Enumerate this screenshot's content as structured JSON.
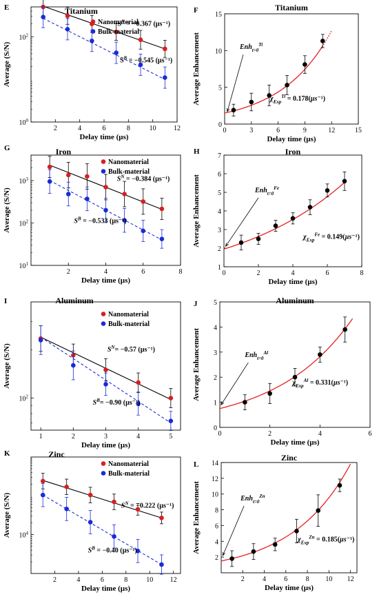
{
  "chart_data": [
    {
      "id": "E",
      "panel_label": "E",
      "type": "scatter",
      "title": "Titanium",
      "xlabel": "Delay time (µs)",
      "ylabel": "Average (S/N)",
      "xlim": [
        0,
        12
      ],
      "ylim_log10": [
        0,
        2.7
      ],
      "y_scale": "log",
      "grid": false,
      "x_ticks": [
        2,
        4,
        6,
        8,
        10,
        12
      ],
      "y_ticks": [
        {
          "v": 0,
          "label": "10",
          "sup": "0"
        },
        {
          "v": 2,
          "label": "10",
          "sup": "2"
        }
      ],
      "legend_position": "top-left",
      "series": [
        {
          "name": "Nanomaterial",
          "color": "#d62020",
          "line": "solid",
          "line_color": "#000000",
          "x": [
            1,
            3,
            5,
            7,
            9,
            11
          ],
          "y": [
            500,
            310,
            200,
            130,
            85,
            52
          ],
          "yerr": [
            0.22,
            0.2,
            0.2,
            0.2,
            0.22,
            0.2
          ],
          "fit": [
            [
              1,
              520
            ],
            [
              11,
              52
            ]
          ]
        },
        {
          "name": "Bulk-material",
          "color": "#1a2bd6",
          "line": "dashed",
          "line_color": "#1a2bd6",
          "x": [
            1,
            3,
            5,
            7,
            9,
            11
          ],
          "y": [
            290,
            150,
            80,
            42,
            22,
            11
          ],
          "yerr": [
            0.25,
            0.25,
            0.25,
            0.25,
            0.25,
            0.25
          ],
          "fit": [
            [
              1,
              270
            ],
            [
              11,
              10
            ]
          ]
        }
      ],
      "annotations": [
        {
          "x": 7.1,
          "y": 180,
          "parts": [
            [
              "S",
              ""
            ],
            [
              "N",
              "sup"
            ],
            [
              " = −0.367 (µs⁻¹)",
              ""
            ]
          ]
        },
        {
          "x": 7.3,
          "y": 25,
          "parts": [
            [
              "S",
              ""
            ],
            [
              "B",
              "sup"
            ],
            [
              " = −0.545 (µs⁻¹)",
              ""
            ]
          ]
        }
      ]
    },
    {
      "id": "F",
      "panel_label": "F",
      "type": "scatter",
      "title": "Titanium",
      "xlabel": "Delay time (µs)",
      "ylabel": "Average Enhancement",
      "xlim": [
        0,
        15
      ],
      "ylim": [
        0,
        15
      ],
      "grid": false,
      "x_ticks": [
        0,
        3,
        6,
        9,
        12,
        15
      ],
      "y_ticks": [
        0,
        5,
        10,
        15
      ],
      "series": [
        {
          "color": "#000000",
          "x": [
            1,
            3,
            5,
            7,
            9,
            11
          ],
          "y": [
            1.9,
            3.0,
            3.9,
            5.3,
            8.1,
            11.3
          ],
          "yerr": [
            0.8,
            1.2,
            1.4,
            1.3,
            1.2,
            0.9
          ]
        }
      ],
      "fit_curve": {
        "a": 1.5,
        "b": 0.178,
        "x_end": 12,
        "color": "#e32020",
        "dotted_after": 11
      },
      "annotations": [
        {
          "x": 5.1,
          "y": 3.2,
          "parts": [
            [
              "χ",
              "it"
            ],
            [
              "Exp",
              "sub"
            ],
            [
              "Ti",
              "sup"
            ],
            [
              " = 0.178(",
              ""
            ],
            [
              "µs",
              "it"
            ],
            [
              "⁻¹",
              ""
            ],
            [
              ")",
              ""
            ]
          ]
        }
      ],
      "callout": {
        "x": 1.7,
        "y": 10.2,
        "parts": [
          [
            "Enh",
            "it"
          ],
          [
            "t=0",
            "sub"
          ],
          [
            "Ti",
            "sup"
          ]
        ],
        "arrow_to": [
          0.3,
          1.7
        ]
      }
    },
    {
      "id": "G",
      "panel_label": "G",
      "type": "scatter",
      "title": "Iron",
      "xlabel": "Delay time (µs)",
      "ylabel": "Average (S/N)",
      "xlim": [
        0,
        8
      ],
      "ylim_log10": [
        1,
        3.6
      ],
      "y_scale": "log",
      "grid": false,
      "x_ticks": [
        2,
        4,
        6,
        8
      ],
      "y_ticks": [
        {
          "v": 1,
          "label": "10",
          "sup": "1"
        },
        {
          "v": 2,
          "label": "10",
          "sup": "2"
        },
        {
          "v": 3,
          "label": "10",
          "sup": "3"
        }
      ],
      "legend_position": "top-right",
      "series": [
        {
          "name": "Nanomaterial",
          "color": "#d62020",
          "line": "solid",
          "line_color": "#000000",
          "x": [
            1,
            2,
            3,
            4,
            5,
            6,
            7
          ],
          "y": [
            2100,
            1350,
            1250,
            700,
            480,
            320,
            215
          ],
          "yerr": [
            0.25,
            0.3,
            0.3,
            0.3,
            0.3,
            0.3,
            0.25
          ],
          "fit": [
            [
              1,
              2300
            ],
            [
              7,
              210
            ]
          ]
        },
        {
          "name": "Bulk-material",
          "color": "#1a2bd6",
          "line": "dashed",
          "line_color": "#1a2bd6",
          "x": [
            1,
            2,
            3,
            4,
            5,
            6,
            7
          ],
          "y": [
            950,
            480,
            370,
            200,
            115,
            65,
            42
          ],
          "yerr": [
            0.28,
            0.28,
            0.28,
            0.28,
            0.28,
            0.25,
            0.22
          ],
          "fit": [
            [
              1,
              1000
            ],
            [
              7,
              40
            ]
          ]
        }
      ],
      "annotations": [
        {
          "x": 4.6,
          "y": 980,
          "parts": [
            [
              "S",
              "it"
            ],
            [
              "N",
              "sup"
            ],
            [
              " = −0.384 (µs⁻¹)",
              ""
            ]
          ]
        },
        {
          "x": 2.3,
          "y": 100,
          "parts": [
            [
              "S",
              "it"
            ],
            [
              "B",
              "sup"
            ],
            [
              " = −0.533 (µs⁻¹)",
              ""
            ]
          ]
        }
      ]
    },
    {
      "id": "H",
      "panel_label": "H",
      "type": "scatter",
      "title": "Iron",
      "xlabel": "Delay time (µs)",
      "ylabel": "Average Enhancement",
      "xlim": [
        0,
        8
      ],
      "ylim": [
        1,
        7
      ],
      "grid": false,
      "x_ticks": [
        0,
        2,
        4,
        6,
        8
      ],
      "y_ticks": [
        1,
        2,
        3,
        4,
        5,
        6,
        7
      ],
      "series": [
        {
          "color": "#000000",
          "x": [
            1,
            2,
            3,
            4,
            5,
            6,
            7
          ],
          "y": [
            2.3,
            2.5,
            3.2,
            3.6,
            4.2,
            5.1,
            5.6
          ],
          "yerr": [
            0.4,
            0.3,
            0.3,
            0.3,
            0.4,
            0.35,
            0.5
          ]
        }
      ],
      "fit_curve": {
        "a": 1.95,
        "b": 0.149,
        "x_end": 7.1,
        "color": "#e32020"
      },
      "annotations": [
        {
          "x": 4.6,
          "y": 2.5,
          "parts": [
            [
              "χ",
              "it"
            ],
            [
              "Exp",
              "sub"
            ],
            [
              "Fe",
              "sup"
            ],
            [
              " = 0.149(",
              ""
            ],
            [
              "µs",
              "it"
            ],
            [
              "⁻¹",
              ""
            ],
            [
              ")",
              ""
            ]
          ]
        }
      ],
      "callout": {
        "x": 1.8,
        "y": 5.0,
        "parts": [
          [
            "Enh",
            "it"
          ],
          [
            "t=0",
            "sub"
          ],
          [
            "Fe",
            "sup"
          ]
        ],
        "arrow_to": [
          0.1,
          2.1
        ]
      }
    },
    {
      "id": "I",
      "panel_label": "I",
      "type": "scatter",
      "title": "Aluminum",
      "xlabel": "Delay time (µs)",
      "ylabel": "Average (S/N)",
      "xlim": [
        0.7,
        5.3
      ],
      "ylim_log10": [
        1.8,
        2.6
      ],
      "y_scale": "log",
      "grid": false,
      "x_ticks": [
        1,
        2,
        3,
        4,
        5
      ],
      "y_ticks": [
        {
          "v": 2,
          "label": "10",
          "sup": "2"
        }
      ],
      "legend_position": "top-right",
      "series": [
        {
          "name": "Nanomaterial",
          "color": "#d62020",
          "line": "solid",
          "line_color": "#000000",
          "x": [
            1,
            2,
            3,
            4,
            5
          ],
          "y": [
            235,
            185,
            150,
            125,
            100
          ],
          "yerr": [
            0.08,
            0.07,
            0.07,
            0.06,
            0.06
          ],
          "fit": [
            [
              1,
              240
            ],
            [
              5,
              98
            ]
          ]
        },
        {
          "name": "Bulk-material",
          "color": "#1a2bd6",
          "line": "dashed",
          "line_color": "#1a2bd6",
          "x": [
            1,
            2,
            3,
            4,
            5
          ],
          "y": [
            230,
            160,
            122,
            92,
            72
          ],
          "yerr": [
            0.09,
            0.09,
            0.07,
            0.07,
            0.06
          ],
          "fit": [
            [
              1,
              240
            ],
            [
              5,
              70
            ]
          ]
        }
      ],
      "annotations": [
        {
          "x": 3.05,
          "y": 195,
          "parts": [
            [
              "S",
              "it"
            ],
            [
              "N",
              "sup"
            ],
            [
              "= −0.57 (µs⁻¹)",
              ""
            ]
          ]
        },
        {
          "x": 2.6,
          "y": 91,
          "parts": [
            [
              "S",
              "it"
            ],
            [
              "B",
              "sup"
            ],
            [
              "= −0.90 (µs⁻¹)",
              ""
            ]
          ]
        }
      ]
    },
    {
      "id": "J",
      "panel_label": "J",
      "type": "scatter",
      "title": "Aluminum",
      "xlabel": "Delay time (µs)",
      "ylabel": "Average Enhancement",
      "xlim": [
        0,
        6
      ],
      "ylim": [
        0,
        5
      ],
      "grid": false,
      "x_ticks": [
        0,
        2,
        4,
        6
      ],
      "y_ticks": [
        0,
        1,
        2,
        3,
        4,
        5
      ],
      "series": [
        {
          "color": "#000000",
          "x": [
            1,
            2,
            3,
            4,
            5
          ],
          "y": [
            1.0,
            1.35,
            2.0,
            2.9,
            3.9
          ],
          "yerr": [
            0.3,
            0.4,
            0.35,
            0.3,
            0.5
          ]
        }
      ],
      "fit_curve": {
        "a": 0.75,
        "b": 0.331,
        "x_end": 5.3,
        "color": "#e32020"
      },
      "annotations": [
        {
          "x": 2.9,
          "y": 1.7,
          "parts": [
            [
              "χ",
              "it"
            ],
            [
              "Exp",
              "sub"
            ],
            [
              "Al",
              "sup"
            ],
            [
              " = 0.331(",
              ""
            ],
            [
              "µs",
              "it"
            ],
            [
              "⁻¹",
              ""
            ],
            [
              ")",
              ""
            ]
          ]
        }
      ],
      "callout": {
        "x": 1.0,
        "y": 2.8,
        "parts": [
          [
            "Enh",
            "it"
          ],
          [
            "t=0",
            "sub"
          ],
          [
            "Al",
            "sup"
          ]
        ],
        "arrow_to": [
          0.05,
          0.9
        ]
      }
    },
    {
      "id": "K",
      "panel_label": "K",
      "type": "scatter",
      "title": "Zinc",
      "xlabel": "Delay time (µs)",
      "ylabel": "Average (S/N)",
      "xlim": [
        0,
        12.6
      ],
      "ylim_log10": [
        3.0,
        6.0
      ],
      "y_scale": "log",
      "grid": false,
      "x_ticks": [
        2,
        4,
        6,
        8,
        10,
        12
      ],
      "y_ticks": [
        {
          "v": 4,
          "label": "10",
          "sup": "4"
        }
      ],
      "legend_position": "top-right",
      "series": [
        {
          "name": "Nanomaterial",
          "color": "#d62020",
          "line": "solid",
          "line_color": "#000000",
          "x": [
            1,
            3,
            5,
            7,
            9,
            11
          ],
          "y": [
            240000,
            170000,
            105000,
            70000,
            45000,
            27000
          ],
          "yerr": [
            0.2,
            0.2,
            0.2,
            0.2,
            0.15,
            0.15
          ],
          "fit": [
            [
              1,
              250000
            ],
            [
              11,
              27000
            ]
          ]
        },
        {
          "name": "Bulk-material",
          "color": "#1a2bd6",
          "line": "dashed",
          "line_color": "#1a2bd6",
          "x": [
            1,
            3,
            5,
            7,
            9,
            11
          ],
          "y": [
            105000,
            46000,
            21000,
            9000,
            3800,
            1700
          ],
          "yerr": [
            0.3,
            0.3,
            0.3,
            0.3,
            0.3,
            0.25
          ],
          "fit": [
            [
              1,
              105000
            ],
            [
              11,
              1700
            ]
          ]
        }
      ],
      "annotations": [
        {
          "x": 7.6,
          "y": 50000,
          "parts": [
            [
              "S",
              "it"
            ],
            [
              "N",
              "sup"
            ],
            [
              " = −0.222 (µs⁻¹)",
              ""
            ]
          ]
        },
        {
          "x": 4.8,
          "y": 3500,
          "parts": [
            [
              "S",
              "it"
            ],
            [
              "B",
              "sup"
            ],
            [
              " = −0.40 (µs⁻¹)",
              ""
            ]
          ]
        }
      ]
    },
    {
      "id": "L",
      "panel_label": "L",
      "type": "scatter",
      "title": "Zinc",
      "xlabel": "Delay time (µs)",
      "ylabel": "Average Enhancement",
      "xlim": [
        0,
        12.6
      ],
      "ylim": [
        0,
        14
      ],
      "grid": false,
      "x_ticks": [
        2,
        4,
        6,
        8,
        10,
        12
      ],
      "y_ticks": [
        2,
        4,
        6,
        8,
        10,
        12,
        14
      ],
      "series": [
        {
          "color": "#000000",
          "x": [
            1,
            3,
            5,
            7,
            9,
            11
          ],
          "y": [
            1.8,
            2.7,
            3.6,
            5.3,
            7.9,
            11.1
          ],
          "yerr": [
            1.0,
            1.0,
            0.8,
            1.5,
            2.0,
            0.8
          ]
        }
      ],
      "fit_curve": {
        "a": 1.5,
        "b": 0.185,
        "x_end": 12,
        "color": "#e32020"
      },
      "annotations": [
        {
          "x": 7.1,
          "y": 4.0,
          "parts": [
            [
              "χ",
              "it"
            ],
            [
              "Exp",
              "sub"
            ],
            [
              "Zn",
              "sup"
            ],
            [
              " = 0.185(",
              ""
            ],
            [
              "µs",
              "it"
            ],
            [
              "⁻¹",
              ""
            ],
            [
              ")",
              ""
            ]
          ]
        }
      ],
      "callout": {
        "x": 1.8,
        "y": 9.2,
        "parts": [
          [
            "Enh",
            "it"
          ],
          [
            "t=0",
            "sub"
          ],
          [
            "Zn",
            "sup"
          ]
        ],
        "arrow_to": [
          0.15,
          2.2
        ]
      }
    }
  ]
}
